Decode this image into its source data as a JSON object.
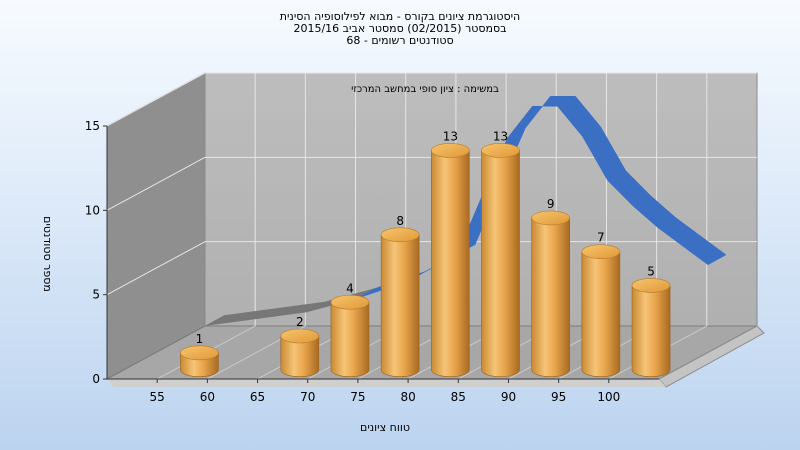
{
  "title_lines": [
    "היסטוגרמת ציונים בקורס - מבוא לפילוסופיה הסינית",
    "בסמסטר  (02/2015)  סמסטר אביב 2015/16",
    "סטודנטים רשומים - 68"
  ],
  "chart_data": {
    "type": "bar",
    "subtitle": "במשימה : ציון סופי במחשב המרכזי",
    "xlabel": "טווח ציונים",
    "ylabel": "מספר סטודנטים",
    "x_ticks": [
      "55",
      "60",
      "65",
      "70",
      "75",
      "80",
      "85",
      "90",
      "95",
      "100"
    ],
    "y_ticks": [
      "0",
      "5",
      "10",
      "15"
    ],
    "ylim": [
      0,
      15
    ],
    "categories": [
      "55-60",
      "60-65",
      "65-70",
      "70-75",
      "75-80",
      "80-85",
      "85-90",
      "90-95",
      "95-100",
      "100"
    ],
    "values": [
      1,
      null,
      2,
      4,
      8,
      13,
      13,
      9,
      7,
      5
    ],
    "data_labels": [
      "1",
      "",
      "2",
      "4",
      "8",
      "13",
      "13",
      "9",
      "7",
      "5"
    ],
    "overlay_curve": {
      "type": "area",
      "colors": [
        "#3a6fc4",
        "#777777"
      ],
      "x": [
        55,
        65,
        70,
        75,
        80,
        82.5,
        85,
        87.5,
        90,
        92.5,
        95,
        97.5,
        100,
        102.5,
        105
      ],
      "y": [
        1.6,
        2.4,
        3.2,
        4.2,
        5.8,
        9.3,
        12.7,
        14.6,
        14.6,
        12.8,
        10.2,
        8.7,
        7.4,
        6.3,
        5.2
      ]
    },
    "grid": true,
    "legend": "none",
    "colors": {
      "bar": "#e8a040",
      "bar_top": "#f5c466",
      "wall_back": "#b7b7b7",
      "wall_left": "#909090",
      "floor": "#a9a9a9",
      "grid": "#ffffff"
    }
  }
}
